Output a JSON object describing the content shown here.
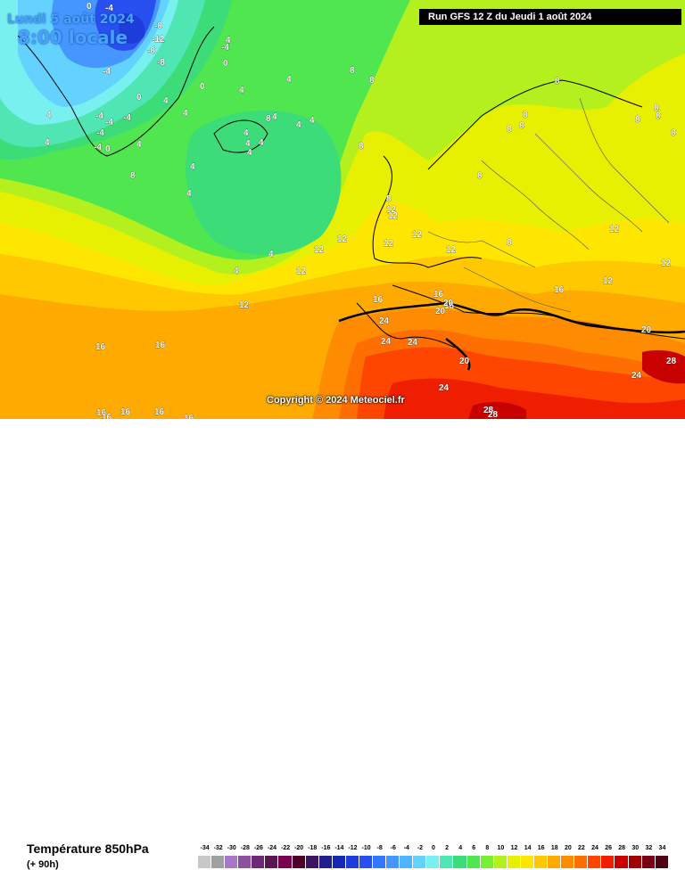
{
  "header": {
    "date_line": "Lundi 5 août 2024",
    "time_line": "8:00 locale",
    "run_info": "Run GFS 12 Z du Jeudi 1 août 2024"
  },
  "copyright": "Copyright © 2024 Meteociel.fr",
  "footer": {
    "parameter": "Température 850hPa",
    "lead_time": "(+ 90h)"
  },
  "legend": {
    "values": [
      "-34",
      "-32",
      "-30",
      "-28",
      "-26",
      "-24",
      "-22",
      "-20",
      "-18",
      "-16",
      "-14",
      "-12",
      "-10",
      "-8",
      "-6",
      "-4",
      "-2",
      "0",
      "2",
      "4",
      "6",
      "8",
      "10",
      "12",
      "14",
      "16",
      "18",
      "20",
      "22",
      "24",
      "26",
      "28",
      "30",
      "32",
      "34"
    ],
    "colors": [
      "#c8c8c8",
      "#a0a0a0",
      "#a878c8",
      "#8c50a0",
      "#6e2878",
      "#5a1450",
      "#780050",
      "#500028",
      "#3c1464",
      "#1e1e8c",
      "#1428b4",
      "#1e3cdc",
      "#2850f0",
      "#3278ff",
      "#4696ff",
      "#50b4ff",
      "#64d2ff",
      "#78f0f0",
      "#50e6b4",
      "#3cdc78",
      "#50e650",
      "#78f032",
      "#b4f01e",
      "#e6f000",
      "#ffe600",
      "#ffc800",
      "#ffaa00",
      "#ff8c00",
      "#ff6e00",
      "#ff4600",
      "#f01e00",
      "#c80000",
      "#a00000",
      "#780014",
      "#500014"
    ]
  },
  "isotherm_labels": {
    "cold": [
      "-8",
      "-12",
      "-8",
      "-8",
      "-4",
      "-4",
      "-4",
      "-4",
      "-4",
      "-4",
      "-4",
      "-4",
      "0",
      "0",
      "0",
      "0",
      "0"
    ],
    "cool": [
      "4",
      "4",
      "4",
      "4",
      "4",
      "4",
      "4",
      "4",
      "4",
      "4",
      "4",
      "4",
      "4",
      "4",
      "4",
      "4",
      "4",
      "4",
      "4"
    ],
    "mild": [
      "8",
      "8",
      "8",
      "8",
      "8",
      "8",
      "8",
      "8",
      "8",
      "8",
      "8",
      "8",
      "8",
      "8",
      "8",
      "8"
    ],
    "warm": [
      "12",
      "12",
      "12",
      "12",
      "12",
      "12",
      "12",
      "12",
      "12",
      "12",
      "12",
      "12"
    ],
    "hot": [
      "16",
      "16",
      "16",
      "16",
      "16",
      "16",
      "16",
      "16",
      "16",
      "16",
      "16"
    ],
    "hotter": [
      "20",
      "20",
      "20",
      "20",
      "24",
      "24",
      "24",
      "24",
      "24",
      "28",
      "28",
      "28"
    ]
  }
}
